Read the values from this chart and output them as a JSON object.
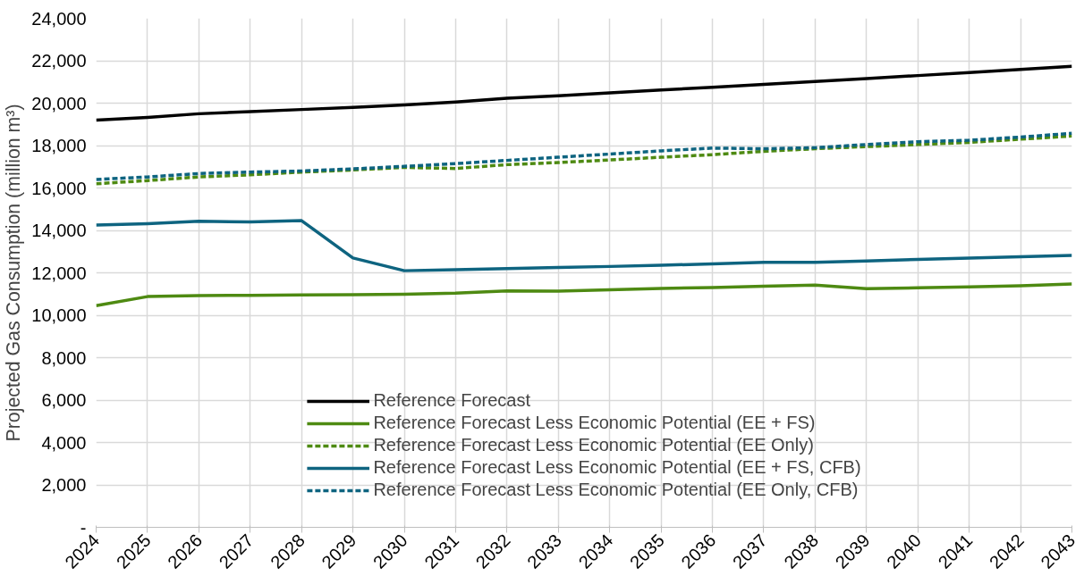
{
  "chart_data": {
    "type": "line",
    "ylabel": "Projected Gas Consumption (million m³)",
    "x": [
      2024,
      2025,
      2026,
      2027,
      2028,
      2029,
      2030,
      2031,
      2032,
      2033,
      2034,
      2035,
      2036,
      2037,
      2038,
      2039,
      2040,
      2041,
      2042,
      2043
    ],
    "xlim": [
      2024,
      2043
    ],
    "xticks": [
      2024,
      2025,
      2026,
      2027,
      2028,
      2029,
      2030,
      2031,
      2032,
      2033,
      2034,
      2035,
      2036,
      2037,
      2038,
      2039,
      2040,
      2041,
      2042,
      2043
    ],
    "ylim": [
      0,
      24000
    ],
    "yticks": [
      {
        "value": 0,
        "label": "-"
      },
      {
        "value": 2000,
        "label": "2,000"
      },
      {
        "value": 4000,
        "label": "4,000"
      },
      {
        "value": 6000,
        "label": "6,000"
      },
      {
        "value": 8000,
        "label": "8,000"
      },
      {
        "value": 10000,
        "label": "10,000"
      },
      {
        "value": 12000,
        "label": "12,000"
      },
      {
        "value": 14000,
        "label": "14,000"
      },
      {
        "value": 16000,
        "label": "16,000"
      },
      {
        "value": 18000,
        "label": "18,000"
      },
      {
        "value": 20000,
        "label": "20,000"
      },
      {
        "value": 22000,
        "label": "22,000"
      },
      {
        "value": 24000,
        "label": "24,000"
      }
    ],
    "grid": true,
    "legend": "bottom",
    "marker": "none",
    "series": [
      {
        "name": "Reference Forecast",
        "color": "#000000",
        "line_style": "solid",
        "values": [
          19200,
          19330,
          19500,
          19600,
          19700,
          19800,
          19920,
          20050,
          20230,
          20350,
          20480,
          20620,
          20750,
          20880,
          21020,
          21160,
          21300,
          21440,
          21590,
          21740
        ]
      },
      {
        "name": "Reference Forecast Less Economic Potential (EE + FS)",
        "color": "#4e8a12",
        "line_style": "solid",
        "values": [
          10450,
          10880,
          10930,
          10940,
          10960,
          10970,
          10990,
          11040,
          11150,
          11140,
          11200,
          11260,
          11310,
          11370,
          11420,
          11250,
          11290,
          11340,
          11390,
          11470
        ]
      },
      {
        "name": "Reference Forecast Less Economic Potential (EE Only)",
        "color": "#4e8a12",
        "line_style": "dashed",
        "values": [
          16200,
          16350,
          16520,
          16620,
          16750,
          16850,
          16970,
          16920,
          17100,
          17200,
          17320,
          17450,
          17570,
          17730,
          17850,
          17950,
          18050,
          18150,
          18300,
          18450
        ]
      },
      {
        "name": "Reference Forecast Less Economic Potential (EE + FS, CFB)",
        "color": "#0e6480",
        "line_style": "solid",
        "values": [
          14250,
          14320,
          14430,
          14400,
          14460,
          12700,
          12100,
          12150,
          12200,
          12250,
          12300,
          12360,
          12420,
          12490,
          12500,
          12560,
          12630,
          12690,
          12760,
          12820
        ]
      },
      {
        "name": "Reference Forecast Less Economic Potential (EE Only, CFB)",
        "color": "#0e6480",
        "line_style": "dashed",
        "values": [
          16400,
          16520,
          16680,
          16750,
          16800,
          16900,
          17020,
          17150,
          17300,
          17450,
          17600,
          17750,
          17880,
          17850,
          17900,
          18050,
          18180,
          18250,
          18400,
          18580
        ]
      }
    ]
  }
}
